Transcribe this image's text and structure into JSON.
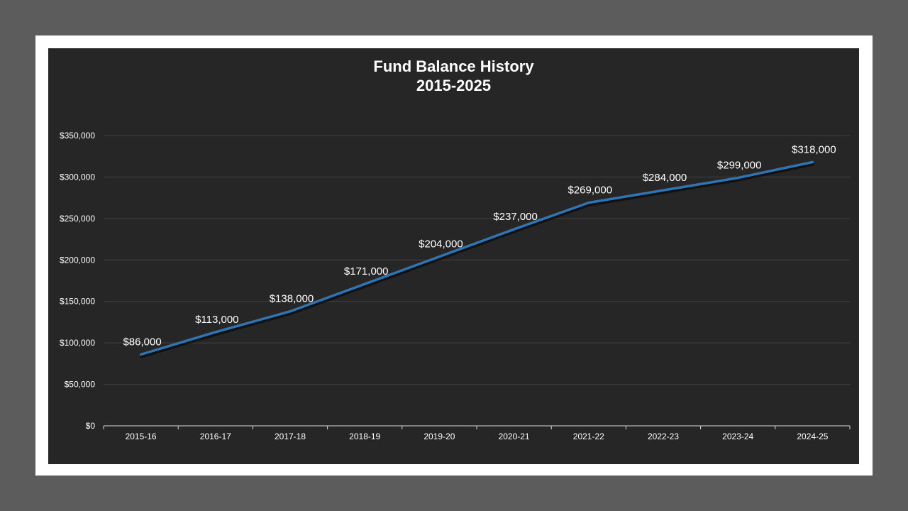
{
  "chart_data": {
    "type": "line",
    "title": "Fund Balance History",
    "subtitle": "2015-2025",
    "xlabel": "",
    "ylabel": "",
    "categories": [
      "2015-16",
      "2016-17",
      "2017-18",
      "2018-19",
      "2019-20",
      "2020-21",
      "2021-22",
      "2022-23",
      "2023-24",
      "2024-25"
    ],
    "series": [
      {
        "values": [
          86000,
          113000,
          138000,
          171000,
          204000,
          237000,
          269000,
          284000,
          299000,
          318000
        ]
      }
    ],
    "data_labels": [
      "$86,000",
      "$113,000",
      "$138,000",
      "$171,000",
      "$204,000",
      "$237,000",
      "$269,000",
      "$284,000",
      "$299,000",
      "$318,000"
    ],
    "ylim": [
      0,
      350000
    ],
    "yticks": [
      0,
      50000,
      100000,
      150000,
      200000,
      250000,
      300000,
      350000
    ],
    "ytick_labels": [
      "$0",
      "$50,000",
      "$100,000",
      "$150,000",
      "$200,000",
      "$250,000",
      "$300,000",
      "$350,000"
    ],
    "grid": true,
    "legend": "none",
    "line_color": "#2e75b6",
    "background_color": "#262626",
    "text_color": "#ffffff",
    "grid_color": "#404040"
  }
}
